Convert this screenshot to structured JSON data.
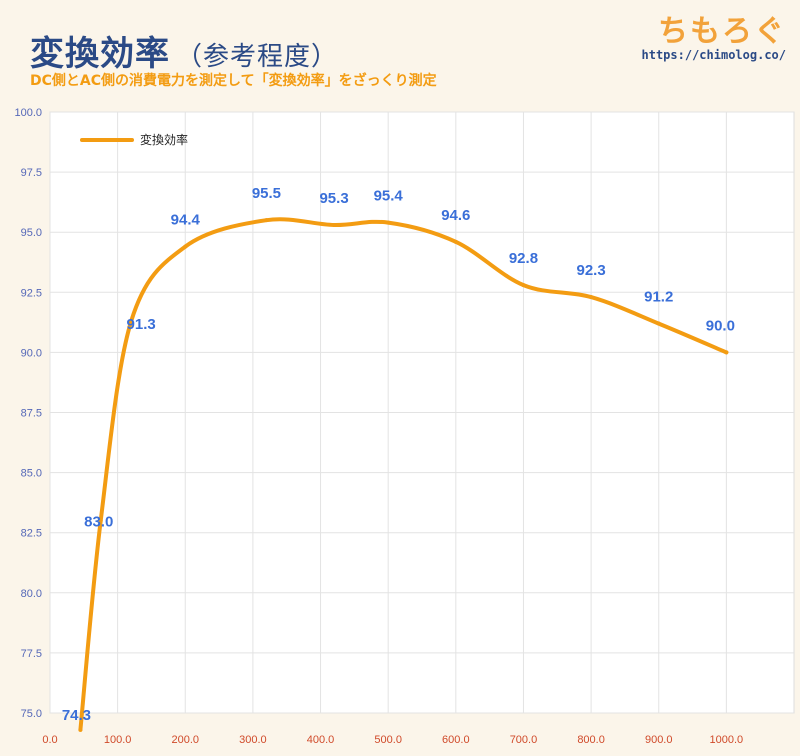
{
  "header": {
    "title": "変換効率",
    "title_sub": "（参考程度）",
    "subtitle": "DC側とAC側の消費電力を測定して「変換効率」をざっくり測定"
  },
  "logo": {
    "name": "ちもろぐ",
    "url": "https://chimolog.co/"
  },
  "colors": {
    "line": "#f39c12",
    "data_label": "#3a6fd8",
    "y_tick": "#5568b8",
    "x_tick": "#d04a2a",
    "title": "#2b4a86",
    "background": "#fbf5ea",
    "grid": "#e3e3e3"
  },
  "chart_data": {
    "type": "line",
    "title": "",
    "xlabel": "",
    "ylabel": "",
    "xlim": [
      0,
      1100
    ],
    "ylim": [
      75,
      100
    ],
    "grid": true,
    "legend_position": "top-left",
    "x_ticks": [
      "0.0",
      "100.0",
      "200.0",
      "300.0",
      "400.0",
      "500.0",
      "600.0",
      "700.0",
      "800.0",
      "900.0",
      "1000.0"
    ],
    "y_ticks": [
      "75.0",
      "77.5",
      "80.0",
      "82.5",
      "85.0",
      "87.5",
      "90.0",
      "92.5",
      "95.0",
      "97.5",
      "100.0"
    ],
    "series": [
      {
        "name": "変換効率",
        "x": [
          45,
          75,
          120,
          200,
          320,
          420,
          500,
          600,
          700,
          800,
          900,
          1000
        ],
        "y": [
          74.3,
          83.0,
          91.3,
          94.4,
          95.5,
          95.3,
          95.4,
          94.6,
          92.8,
          92.3,
          91.2,
          90.0
        ],
        "labels": [
          "74.3",
          "83.0",
          "91.3",
          "94.4",
          "95.5",
          "95.3",
          "95.4",
          "94.6",
          "92.8",
          "92.3",
          "91.2",
          "90.0"
        ]
      }
    ]
  }
}
